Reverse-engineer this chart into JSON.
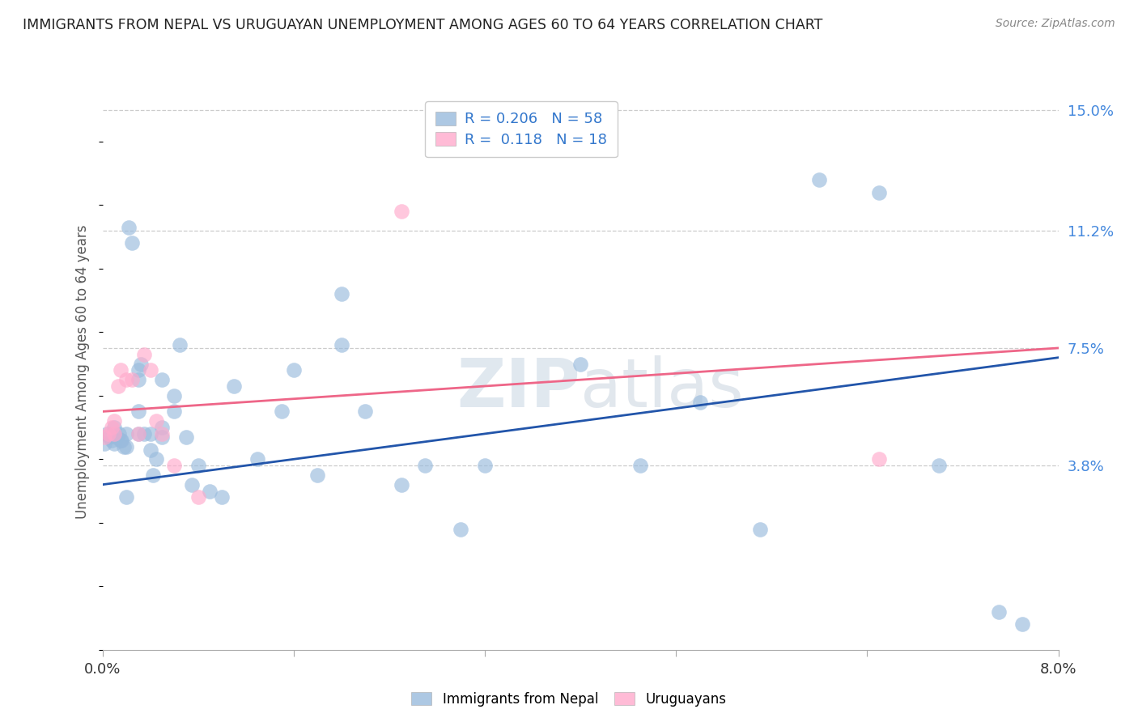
{
  "title": "IMMIGRANTS FROM NEPAL VS URUGUAYAN UNEMPLOYMENT AMONG AGES 60 TO 64 YEARS CORRELATION CHART",
  "source": "Source: ZipAtlas.com",
  "ylabel": "Unemployment Among Ages 60 to 64 years",
  "x_min": 0.0,
  "x_max": 0.08,
  "y_min": -0.02,
  "y_max": 0.155,
  "right_ytick_positions": [
    0.038,
    0.075,
    0.112,
    0.15
  ],
  "right_ytick_labels": [
    "3.8%",
    "7.5%",
    "11.2%",
    "15.0%"
  ],
  "xtick_values": [
    0.0,
    0.016,
    0.032,
    0.048,
    0.064,
    0.08
  ],
  "xtick_labels": [
    "0.0%",
    "",
    "",
    "",
    "",
    "8.0%"
  ],
  "legend1_label": "R = 0.206   N = 58",
  "legend2_label": "R =  0.118   N = 18",
  "color_blue": "#99BBDD",
  "color_pink": "#FFAACC",
  "line_color_blue": "#2255AA",
  "line_color_pink": "#EE6688",
  "nepal_x": [
    0.0002,
    0.0004,
    0.0006,
    0.0008,
    0.001,
    0.001,
    0.0012,
    0.0014,
    0.0015,
    0.0016,
    0.0018,
    0.002,
    0.002,
    0.002,
    0.0022,
    0.0025,
    0.003,
    0.003,
    0.003,
    0.003,
    0.0032,
    0.0035,
    0.004,
    0.004,
    0.0042,
    0.0045,
    0.005,
    0.005,
    0.005,
    0.006,
    0.006,
    0.0065,
    0.007,
    0.0075,
    0.008,
    0.009,
    0.01,
    0.011,
    0.013,
    0.015,
    0.016,
    0.018,
    0.02,
    0.02,
    0.022,
    0.025,
    0.027,
    0.03,
    0.032,
    0.04,
    0.045,
    0.05,
    0.055,
    0.06,
    0.065,
    0.07,
    0.075,
    0.077
  ],
  "nepal_y": [
    0.045,
    0.048,
    0.047,
    0.046,
    0.05,
    0.045,
    0.047,
    0.048,
    0.046,
    0.046,
    0.044,
    0.028,
    0.048,
    0.044,
    0.113,
    0.108,
    0.048,
    0.055,
    0.065,
    0.068,
    0.07,
    0.048,
    0.048,
    0.043,
    0.035,
    0.04,
    0.065,
    0.047,
    0.05,
    0.055,
    0.06,
    0.076,
    0.047,
    0.032,
    0.038,
    0.03,
    0.028,
    0.063,
    0.04,
    0.055,
    0.068,
    0.035,
    0.092,
    0.076,
    0.055,
    0.032,
    0.038,
    0.018,
    0.038,
    0.07,
    0.038,
    0.058,
    0.018,
    0.128,
    0.124,
    0.038,
    -0.008,
    -0.012
  ],
  "uruguay_x": [
    0.0002,
    0.0005,
    0.0008,
    0.001,
    0.001,
    0.0013,
    0.0015,
    0.002,
    0.0025,
    0.003,
    0.0035,
    0.004,
    0.0045,
    0.005,
    0.006,
    0.008,
    0.025,
    0.065
  ],
  "uruguay_y": [
    0.047,
    0.048,
    0.05,
    0.048,
    0.052,
    0.063,
    0.068,
    0.065,
    0.065,
    0.048,
    0.073,
    0.068,
    0.052,
    0.048,
    0.038,
    0.028,
    0.118,
    0.04
  ],
  "nepal_trendline": [
    0.032,
    0.072
  ],
  "uruguay_trendline": [
    0.055,
    0.075
  ],
  "watermark": "ZIPatlas",
  "background_color": "#FFFFFF",
  "grid_color": "#CCCCCC",
  "grid_linestyle": "--"
}
